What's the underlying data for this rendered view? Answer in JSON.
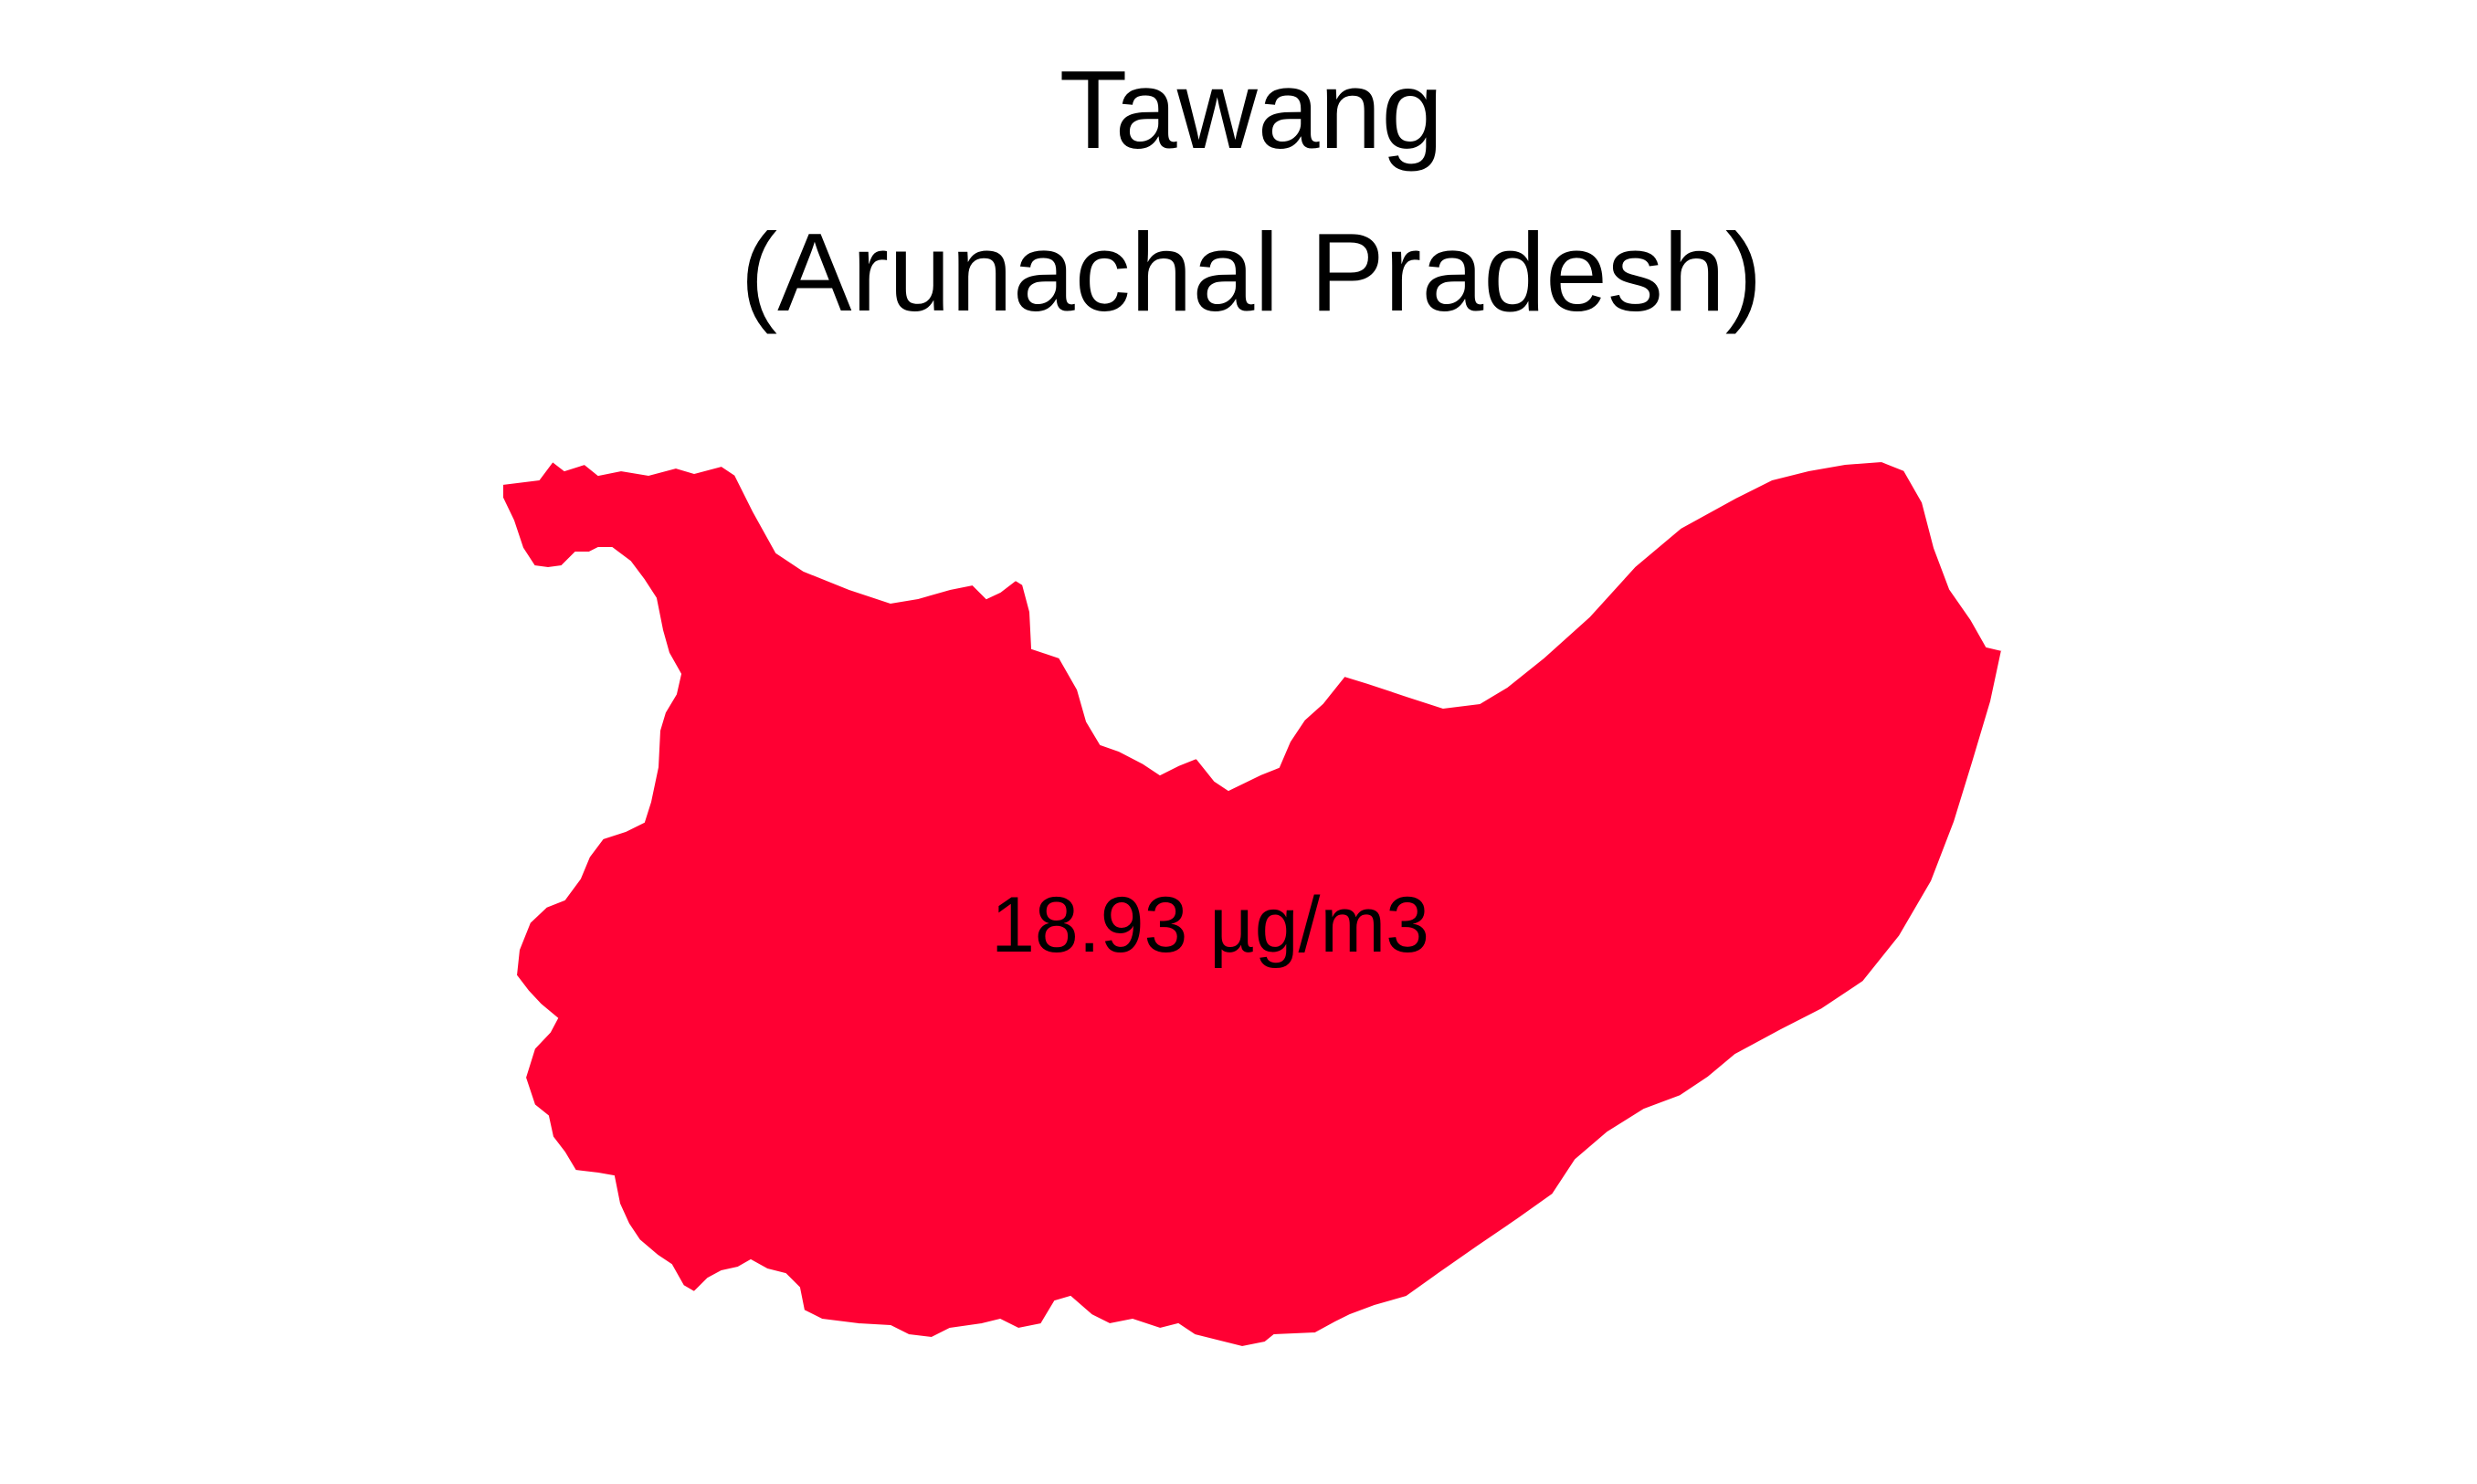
{
  "title": {
    "district": "Tawang",
    "state": "(Arunachal Pradesh)"
  },
  "region": {
    "name": "Tawang",
    "value_label": "18.93 µg/m3",
    "value": 18.93,
    "unit": "µg/m3",
    "fill_color": "#FF0033"
  },
  "colors": {
    "background": "#FFFFFF",
    "text": "#000000",
    "region_fill": "#FF0033"
  }
}
